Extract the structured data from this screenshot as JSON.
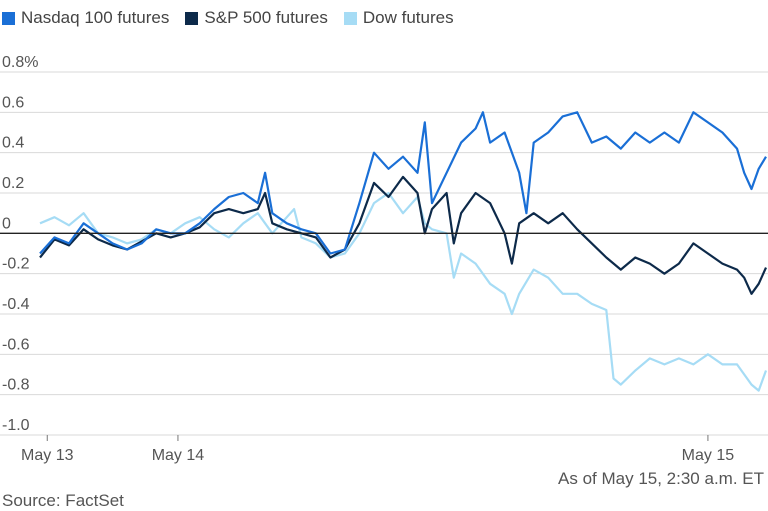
{
  "legend": {
    "items": [
      {
        "label": "Nasdaq 100 futures",
        "color": "#1a6fd6"
      },
      {
        "label": "S&P 500 futures",
        "color": "#0d2a4a"
      },
      {
        "label": "Dow futures",
        "color": "#a6dcf5"
      }
    ]
  },
  "note": "As of May 15, 2:30 a.m. ET",
  "source": "Source: FactSet",
  "chart_data": {
    "type": "line",
    "ylim": [
      -1.0,
      0.8
    ],
    "yticks": [
      0.8,
      0.6,
      0.4,
      0.2,
      0,
      -0.2,
      -0.4,
      -0.6,
      -0.8,
      -1.0
    ],
    "ytick_labels": [
      "0.8%",
      "0.6",
      "0.4",
      "0.2",
      "0",
      "-0.2",
      "-0.4",
      "-0.6",
      "-0.8",
      "-1.0"
    ],
    "x_range": [
      0,
      100
    ],
    "xticks": [
      {
        "label": "May 13",
        "x": 1
      },
      {
        "label": "May 14",
        "x": 19
      },
      {
        "label": "May 15",
        "x": 92
      }
    ],
    "zero_line": true,
    "series": [
      {
        "name": "Nasdaq 100 futures",
        "color": "#1a6fd6",
        "points": [
          [
            0,
            -0.1
          ],
          [
            2,
            -0.02
          ],
          [
            4,
            -0.05
          ],
          [
            6,
            0.05
          ],
          [
            8,
            0.0
          ],
          [
            10,
            -0.05
          ],
          [
            12,
            -0.08
          ],
          [
            14,
            -0.05
          ],
          [
            16,
            0.02
          ],
          [
            18,
            0.0
          ],
          [
            20,
            0.0
          ],
          [
            22,
            0.05
          ],
          [
            24,
            0.12
          ],
          [
            26,
            0.18
          ],
          [
            28,
            0.2
          ],
          [
            30,
            0.15
          ],
          [
            31,
            0.3
          ],
          [
            32,
            0.1
          ],
          [
            34,
            0.05
          ],
          [
            36,
            0.02
          ],
          [
            38,
            0.0
          ],
          [
            40,
            -0.1
          ],
          [
            42,
            -0.08
          ],
          [
            44,
            0.15
          ],
          [
            46,
            0.4
          ],
          [
            48,
            0.32
          ],
          [
            50,
            0.38
          ],
          [
            52,
            0.3
          ],
          [
            53,
            0.55
          ],
          [
            54,
            0.15
          ],
          [
            56,
            0.3
          ],
          [
            58,
            0.45
          ],
          [
            60,
            0.52
          ],
          [
            61,
            0.6
          ],
          [
            62,
            0.45
          ],
          [
            64,
            0.5
          ],
          [
            66,
            0.3
          ],
          [
            67,
            0.1
          ],
          [
            68,
            0.45
          ],
          [
            70,
            0.5
          ],
          [
            72,
            0.58
          ],
          [
            74,
            0.6
          ],
          [
            76,
            0.45
          ],
          [
            78,
            0.48
          ],
          [
            80,
            0.42
          ],
          [
            82,
            0.5
          ],
          [
            84,
            0.45
          ],
          [
            86,
            0.5
          ],
          [
            88,
            0.45
          ],
          [
            90,
            0.6
          ],
          [
            92,
            0.55
          ],
          [
            94,
            0.5
          ],
          [
            96,
            0.42
          ],
          [
            97,
            0.3
          ],
          [
            98,
            0.22
          ],
          [
            99,
            0.32
          ],
          [
            100,
            0.38
          ]
        ]
      },
      {
        "name": "S&P 500 futures",
        "color": "#0d2a4a",
        "points": [
          [
            0,
            -0.12
          ],
          [
            2,
            -0.03
          ],
          [
            4,
            -0.06
          ],
          [
            6,
            0.02
          ],
          [
            8,
            -0.03
          ],
          [
            10,
            -0.06
          ],
          [
            12,
            -0.08
          ],
          [
            14,
            -0.04
          ],
          [
            16,
            0.0
          ],
          [
            18,
            -0.02
          ],
          [
            20,
            0.0
          ],
          [
            22,
            0.03
          ],
          [
            24,
            0.1
          ],
          [
            26,
            0.12
          ],
          [
            28,
            0.1
          ],
          [
            30,
            0.12
          ],
          [
            31,
            0.2
          ],
          [
            32,
            0.05
          ],
          [
            34,
            0.02
          ],
          [
            36,
            0.0
          ],
          [
            38,
            -0.02
          ],
          [
            40,
            -0.12
          ],
          [
            42,
            -0.08
          ],
          [
            44,
            0.05
          ],
          [
            46,
            0.25
          ],
          [
            48,
            0.18
          ],
          [
            50,
            0.28
          ],
          [
            52,
            0.2
          ],
          [
            53,
            0.0
          ],
          [
            54,
            0.12
          ],
          [
            56,
            0.2
          ],
          [
            57,
            -0.05
          ],
          [
            58,
            0.1
          ],
          [
            60,
            0.2
          ],
          [
            62,
            0.15
          ],
          [
            64,
            0.0
          ],
          [
            65,
            -0.15
          ],
          [
            66,
            0.05
          ],
          [
            68,
            0.1
          ],
          [
            70,
            0.05
          ],
          [
            72,
            0.1
          ],
          [
            74,
            0.02
          ],
          [
            76,
            -0.05
          ],
          [
            78,
            -0.12
          ],
          [
            80,
            -0.18
          ],
          [
            82,
            -0.12
          ],
          [
            84,
            -0.15
          ],
          [
            86,
            -0.2
          ],
          [
            88,
            -0.15
          ],
          [
            90,
            -0.05
          ],
          [
            92,
            -0.1
          ],
          [
            94,
            -0.15
          ],
          [
            96,
            -0.18
          ],
          [
            97,
            -0.22
          ],
          [
            98,
            -0.3
          ],
          [
            99,
            -0.25
          ],
          [
            100,
            -0.17
          ]
        ]
      },
      {
        "name": "Dow futures",
        "color": "#a6dcf5",
        "points": [
          [
            0,
            0.05
          ],
          [
            2,
            0.08
          ],
          [
            4,
            0.04
          ],
          [
            6,
            0.1
          ],
          [
            8,
            0.0
          ],
          [
            10,
            -0.02
          ],
          [
            12,
            -0.05
          ],
          [
            14,
            -0.03
          ],
          [
            16,
            0.02
          ],
          [
            18,
            0.0
          ],
          [
            20,
            0.05
          ],
          [
            22,
            0.08
          ],
          [
            24,
            0.02
          ],
          [
            26,
            -0.02
          ],
          [
            28,
            0.05
          ],
          [
            30,
            0.1
          ],
          [
            32,
            0.0
          ],
          [
            34,
            0.08
          ],
          [
            35,
            0.12
          ],
          [
            36,
            -0.02
          ],
          [
            38,
            -0.05
          ],
          [
            40,
            -0.12
          ],
          [
            42,
            -0.1
          ],
          [
            44,
            0.0
          ],
          [
            46,
            0.15
          ],
          [
            48,
            0.2
          ],
          [
            50,
            0.1
          ],
          [
            52,
            0.18
          ],
          [
            53,
            0.05
          ],
          [
            54,
            0.02
          ],
          [
            56,
            0.0
          ],
          [
            57,
            -0.22
          ],
          [
            58,
            -0.1
          ],
          [
            60,
            -0.15
          ],
          [
            62,
            -0.25
          ],
          [
            64,
            -0.3
          ],
          [
            65,
            -0.4
          ],
          [
            66,
            -0.3
          ],
          [
            68,
            -0.18
          ],
          [
            70,
            -0.22
          ],
          [
            72,
            -0.3
          ],
          [
            74,
            -0.3
          ],
          [
            76,
            -0.35
          ],
          [
            78,
            -0.38
          ],
          [
            79,
            -0.72
          ],
          [
            80,
            -0.75
          ],
          [
            82,
            -0.68
          ],
          [
            84,
            -0.62
          ],
          [
            86,
            -0.65
          ],
          [
            88,
            -0.62
          ],
          [
            90,
            -0.65
          ],
          [
            92,
            -0.6
          ],
          [
            94,
            -0.65
          ],
          [
            96,
            -0.65
          ],
          [
            98,
            -0.75
          ],
          [
            99,
            -0.78
          ],
          [
            100,
            -0.68
          ]
        ]
      }
    ]
  }
}
